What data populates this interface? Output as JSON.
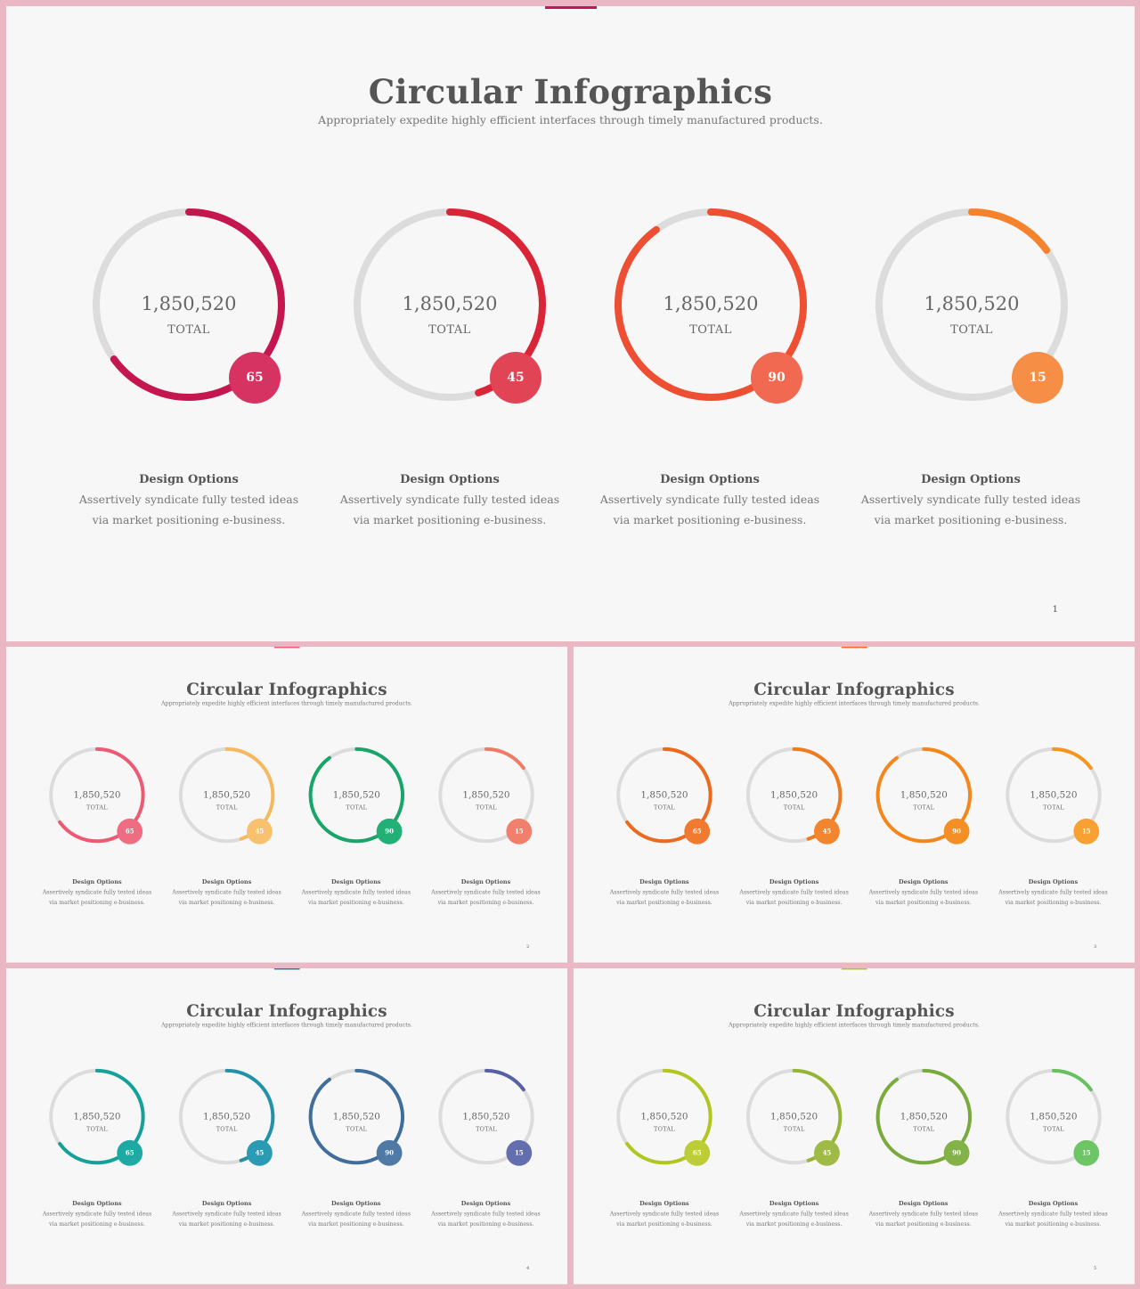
{
  "slides": [
    {
      "title": "Circular Infographics",
      "subtitle": "Appropriately expedite highly efficient interfaces through timely manufactured products.",
      "page": "1",
      "accent": "#c2185b",
      "track_color": "#dcdcdc",
      "items": [
        {
          "value_label": "1,850,520",
          "total_label": "TOTAL",
          "percent": 65,
          "color": "#c4174f",
          "badge_color": "#d63363",
          "heading": "Design Options",
          "desc_line1": "Assertively syndicate fully  tested ideas",
          "desc_line2": "via market positioning e-business."
        },
        {
          "value_label": "1,850,520",
          "total_label": "TOTAL",
          "percent": 45,
          "color": "#da2437",
          "badge_color": "#e04455",
          "heading": "Design Options",
          "desc_line1": "Assertively syndicate fully  tested ideas",
          "desc_line2": "via market positioning e-business."
        },
        {
          "value_label": "1,850,520",
          "total_label": "TOTAL",
          "percent": 90,
          "color": "#ee4f33",
          "badge_color": "#f06950",
          "heading": "Design Options",
          "desc_line1": "Assertively syndicate fully  tested ideas",
          "desc_line2": "via market positioning e-business."
        },
        {
          "value_label": "1,850,520",
          "total_label": "TOTAL",
          "percent": 15,
          "color": "#f6822e",
          "badge_color": "#f78e45",
          "heading": "Design Options",
          "desc_line1": "Assertively syndicate fully  tested ideas",
          "desc_line2": "via market positioning e-business."
        }
      ]
    },
    {
      "title": "Circular Infographics",
      "subtitle": "Appropriately expedite highly efficient interfaces through timely manufactured products.",
      "page": "2",
      "accent": "#ee5a6f",
      "track_color": "#dcdcdc",
      "items": [
        {
          "value_label": "1,850,520",
          "total_label": "TOTAL",
          "percent": 65,
          "color": "#ec5a73",
          "badge_color": "#ef6d83",
          "heading": "Design Options",
          "desc_line1": "Assertively syndicate fully  tested ideas",
          "desc_line2": "via market positioning e-business."
        },
        {
          "value_label": "1,850,520",
          "total_label": "TOTAL",
          "percent": 45,
          "color": "#f5b960",
          "badge_color": "#f7c16f",
          "heading": "Design Options",
          "desc_line1": "Assertively syndicate fully  tested ideas",
          "desc_line2": "via market positioning e-business."
        },
        {
          "value_label": "1,850,520",
          "total_label": "TOTAL",
          "percent": 90,
          "color": "#17a56a",
          "badge_color": "#22b077",
          "heading": "Design Options",
          "desc_line1": "Assertively syndicate fully  tested ideas",
          "desc_line2": "via market positioning e-business."
        },
        {
          "value_label": "1,850,520",
          "total_label": "TOTAL",
          "percent": 15,
          "color": "#f07a66",
          "badge_color": "#f27e6c",
          "heading": "Design Options",
          "desc_line1": "Assertively syndicate fully  tested ideas",
          "desc_line2": "via market positioning e-business."
        }
      ]
    },
    {
      "title": "Circular Infographics",
      "subtitle": "Appropriately expedite highly efficient interfaces through timely manufactured products.",
      "page": "3",
      "accent": "#f26a2a",
      "track_color": "#dcdcdc",
      "items": [
        {
          "value_label": "1,850,520",
          "total_label": "TOTAL",
          "percent": 65,
          "color": "#ec6a1e",
          "badge_color": "#f07a30",
          "heading": "Design Options",
          "desc_line1": "Assertively syndicate fully  tested ideas",
          "desc_line2": "via market positioning e-business."
        },
        {
          "value_label": "1,850,520",
          "total_label": "TOTAL",
          "percent": 45,
          "color": "#f07a1e",
          "badge_color": "#f3852e",
          "heading": "Design Options",
          "desc_line1": "Assertively syndicate fully  tested ideas",
          "desc_line2": "via market positioning e-business."
        },
        {
          "value_label": "1,850,520",
          "total_label": "TOTAL",
          "percent": 90,
          "color": "#f5861a",
          "badge_color": "#f48f25",
          "heading": "Design Options",
          "desc_line1": "Assertively syndicate fully  tested ideas",
          "desc_line2": "via market positioning e-business."
        },
        {
          "value_label": "1,850,520",
          "total_label": "TOTAL",
          "percent": 15,
          "color": "#f7951c",
          "badge_color": "#f8a032",
          "heading": "Design Options",
          "desc_line1": "Assertively syndicate fully  tested ideas",
          "desc_line2": "via market positioning e-business."
        }
      ]
    },
    {
      "title": "Circular Infographics",
      "subtitle": "Appropriately expedite highly efficient interfaces through timely manufactured products.",
      "page": "4",
      "accent": "#1e8a9c",
      "track_color": "#dcdcdc",
      "items": [
        {
          "value_label": "1,850,520",
          "total_label": "TOTAL",
          "percent": 65,
          "color": "#16a09a",
          "badge_color": "#1fa9a3",
          "heading": "Design Options",
          "desc_line1": "Assertively syndicate fully  tested ideas",
          "desc_line2": "via market positioning e-business."
        },
        {
          "value_label": "1,850,520",
          "total_label": "TOTAL",
          "percent": 45,
          "color": "#2192a8",
          "badge_color": "#2a9bb2",
          "heading": "Design Options",
          "desc_line1": "Assertively syndicate fully  tested ideas",
          "desc_line2": "via market positioning e-business."
        },
        {
          "value_label": "1,850,520",
          "total_label": "TOTAL",
          "percent": 90,
          "color": "#3f6d9c",
          "badge_color": "#4f7aa6",
          "heading": "Design Options",
          "desc_line1": "Assertively syndicate fully  tested ideas",
          "desc_line2": "via market positioning e-business."
        },
        {
          "value_label": "1,850,520",
          "total_label": "TOTAL",
          "percent": 15,
          "color": "#5661a5",
          "badge_color": "#636eae",
          "heading": "Design Options",
          "desc_line1": "Assertively syndicate fully  tested ideas",
          "desc_line2": "via market positioning e-business."
        }
      ]
    },
    {
      "title": "Circular Infographics",
      "subtitle": "Appropriately expedite highly efficient interfaces through timely manufactured products.",
      "page": "5",
      "accent": "#b3c52a",
      "track_color": "#dcdcdc",
      "items": [
        {
          "value_label": "1,850,520",
          "total_label": "TOTAL",
          "percent": 65,
          "color": "#b2c620",
          "badge_color": "#bccd35",
          "heading": "Design Options",
          "desc_line1": "Assertively syndicate fully  tested ideas",
          "desc_line2": "via market positioning e-business."
        },
        {
          "value_label": "1,850,520",
          "total_label": "TOTAL",
          "percent": 45,
          "color": "#96b536",
          "badge_color": "#9fbb45",
          "heading": "Design Options",
          "desc_line1": "Assertively syndicate fully  tested ideas",
          "desc_line2": "via market positioning e-business."
        },
        {
          "value_label": "1,850,520",
          "total_label": "TOTAL",
          "percent": 90,
          "color": "#78ab3c",
          "badge_color": "#83b249",
          "heading": "Design Options",
          "desc_line1": "Assertively syndicate fully  tested ideas",
          "desc_line2": "via market positioning e-business."
        },
        {
          "value_label": "1,850,520",
          "total_label": "TOTAL",
          "percent": 15,
          "color": "#65c25e",
          "badge_color": "#6dc566",
          "heading": "Design Options",
          "desc_line1": "Assertively syndicate fully  tested ideas",
          "desc_line2": "via market positioning e-business."
        }
      ]
    }
  ],
  "chart_data": [
    {
      "type": "pie",
      "title": "Circular Infographics",
      "categories": [
        "Design Options",
        "Design Options",
        "Design Options",
        "Design Options"
      ],
      "values": [
        65,
        45,
        90,
        15
      ]
    },
    {
      "type": "pie",
      "title": "Circular Infographics",
      "categories": [
        "Design Options",
        "Design Options",
        "Design Options",
        "Design Options"
      ],
      "values": [
        65,
        45,
        90,
        15
      ]
    },
    {
      "type": "pie",
      "title": "Circular Infographics",
      "categories": [
        "Design Options",
        "Design Options",
        "Design Options",
        "Design Options"
      ],
      "values": [
        65,
        45,
        90,
        15
      ]
    },
    {
      "type": "pie",
      "title": "Circular Infographics",
      "categories": [
        "Design Options",
        "Design Options",
        "Design Options",
        "Design Options"
      ],
      "values": [
        65,
        45,
        90,
        15
      ]
    },
    {
      "type": "pie",
      "title": "Circular Infographics",
      "categories": [
        "Design Options",
        "Design Options",
        "Design Options",
        "Design Options"
      ],
      "values": [
        65,
        45,
        90,
        15
      ]
    }
  ]
}
